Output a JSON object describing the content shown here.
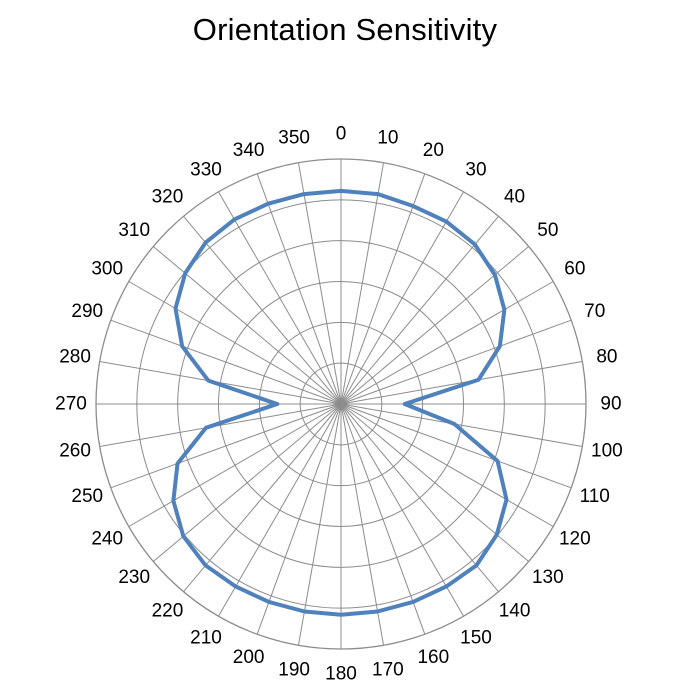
{
  "chart_data": {
    "type": "radar",
    "title": "Orientation Sensitivity",
    "angular_unit": "degrees",
    "angular_ticks": [
      0,
      10,
      20,
      30,
      40,
      50,
      60,
      70,
      80,
      90,
      100,
      110,
      120,
      130,
      140,
      150,
      160,
      170,
      180,
      190,
      200,
      210,
      220,
      230,
      240,
      250,
      260,
      270,
      280,
      290,
      300,
      310,
      320,
      330,
      340,
      350
    ],
    "radial_gridlines": 6,
    "radial_labels_shown": false,
    "grid": true,
    "series": [
      {
        "color": "#4f81bd",
        "angles": [
          0,
          10,
          20,
          30,
          40,
          50,
          60,
          70,
          80,
          90,
          100,
          110,
          120,
          130,
          140,
          150,
          160,
          170,
          180,
          190,
          200,
          210,
          220,
          230,
          240,
          250,
          260,
          270,
          280,
          290,
          300,
          310,
          320,
          330,
          340,
          350
        ],
        "values": [
          0.87,
          0.87,
          0.86,
          0.86,
          0.85,
          0.82,
          0.77,
          0.69,
          0.57,
          0.26,
          0.47,
          0.68,
          0.78,
          0.83,
          0.86,
          0.86,
          0.86,
          0.86,
          0.86,
          0.86,
          0.86,
          0.86,
          0.86,
          0.84,
          0.79,
          0.71,
          0.56,
          0.26,
          0.55,
          0.69,
          0.78,
          0.83,
          0.86,
          0.87,
          0.87,
          0.87
        ]
      }
    ]
  }
}
